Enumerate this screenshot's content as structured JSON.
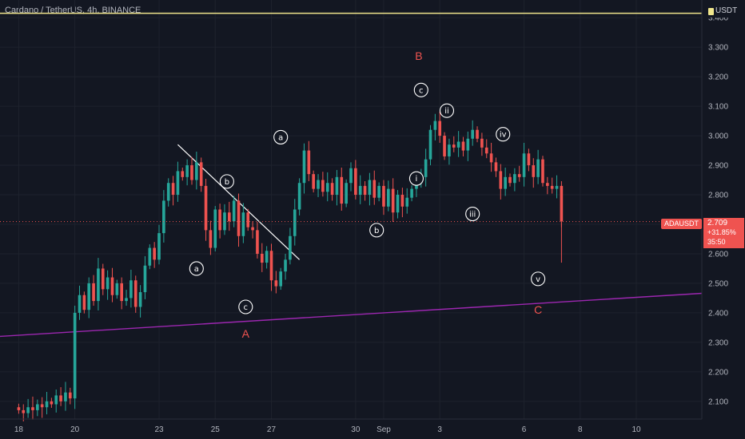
{
  "header": {
    "title": "Cardano / TetherUS, 4h, BINANCE"
  },
  "currency_tag": "USDT",
  "last_price_tag": {
    "symbol": "ADAUSDT",
    "price": "2.709",
    "change": "+31.85%",
    "countdown": "35:50"
  },
  "colors": {
    "up": "#26a69a",
    "down": "#ef5350",
    "background": "#131722",
    "grid": "#1e222d",
    "trendline": "#ffffff",
    "support": "#9c27b0",
    "resistance": "#f0e68c",
    "wave_red": "#ef5350"
  },
  "chart_data": {
    "type": "candlestick",
    "title": "Cardano / TetherUS, 4h, BINANCE",
    "price_axis": {
      "ticks": [
        "3.400",
        "3.300",
        "3.200",
        "3.100",
        "3.000",
        "2.900",
        "2.800",
        "2.700",
        "2.600",
        "2.500",
        "2.400",
        "2.300",
        "2.200",
        "2.100"
      ],
      "range": [
        2.04,
        3.46
      ]
    },
    "time_axis": {
      "ticks": [
        {
          "label": "18",
          "t": 0
        },
        {
          "label": "20",
          "t": 12
        },
        {
          "label": "23",
          "t": 30
        },
        {
          "label": "25",
          "t": 42
        },
        {
          "label": "27",
          "t": 54
        },
        {
          "label": "30",
          "t": 72
        },
        {
          "label": "Sep",
          "t": 78
        },
        {
          "label": "3",
          "t": 90
        },
        {
          "label": "6",
          "t": 108
        },
        {
          "label": "8",
          "t": 120
        },
        {
          "label": "10",
          "t": 132
        }
      ],
      "range": [
        -4,
        146
      ]
    },
    "candles_close": [
      2.07,
      2.06,
      2.08,
      2.07,
      2.09,
      2.08,
      2.1,
      2.09,
      2.12,
      2.1,
      2.13,
      2.11,
      2.4,
      2.46,
      2.41,
      2.5,
      2.44,
      2.55,
      2.48,
      2.52,
      2.46,
      2.5,
      2.44,
      2.45,
      2.51,
      2.42,
      2.47,
      2.56,
      2.62,
      2.58,
      2.67,
      2.78,
      2.84,
      2.8,
      2.88,
      2.86,
      2.9,
      2.85,
      2.91,
      2.83,
      2.68,
      2.62,
      2.75,
      2.68,
      2.74,
      2.71,
      2.78,
      2.66,
      2.74,
      2.69,
      2.68,
      2.6,
      2.57,
      2.61,
      2.51,
      2.49,
      2.54,
      2.58,
      2.66,
      2.75,
      2.84,
      2.95,
      2.87,
      2.82,
      2.85,
      2.81,
      2.84,
      2.8,
      2.86,
      2.77,
      2.84,
      2.89,
      2.8,
      2.83,
      2.8,
      2.85,
      2.79,
      2.83,
      2.76,
      2.82,
      2.74,
      2.8,
      2.76,
      2.79,
      2.82,
      2.84,
      2.86,
      2.92,
      3.02,
      3.05,
      3.0,
      2.93,
      2.97,
      2.96,
      2.98,
      2.95,
      2.99,
      3.02,
      2.99,
      2.96,
      2.94,
      2.91,
      2.88,
      2.82,
      2.86,
      2.84,
      2.87,
      2.86,
      2.94,
      2.9,
      2.86,
      2.92,
      2.84,
      2.83,
      2.82,
      2.83,
      2.71
    ],
    "trendlines": [
      {
        "name": "falling-trendline",
        "from": {
          "t": 34,
          "p": 2.97
        },
        "to": {
          "t": 60,
          "p": 2.58
        }
      },
      {
        "name": "support-line",
        "from": {
          "t": -4,
          "p": 2.32
        },
        "to": {
          "t": 146,
          "p": 2.466
        }
      },
      {
        "name": "resistance-line",
        "from": {
          "t": -4,
          "p": 3.415
        },
        "to": {
          "t": 146,
          "p": 3.415
        }
      }
    ],
    "wave_labels": [
      {
        "text": "a",
        "t": 38,
        "p": 2.55,
        "style": "circle"
      },
      {
        "text": "b",
        "t": 44.5,
        "p": 2.845,
        "style": "circle"
      },
      {
        "text": "c",
        "t": 48.5,
        "p": 2.42,
        "style": "circle"
      },
      {
        "text": "a",
        "t": 56,
        "p": 2.995,
        "style": "circle"
      },
      {
        "text": "b",
        "t": 76.5,
        "p": 2.68,
        "style": "circle"
      },
      {
        "text": "c",
        "t": 86,
        "p": 3.155,
        "style": "circle"
      },
      {
        "text": "i",
        "t": 85,
        "p": 2.855,
        "style": "circle"
      },
      {
        "text": "ii",
        "t": 91.5,
        "p": 3.085,
        "style": "circle"
      },
      {
        "text": "iii",
        "t": 97,
        "p": 2.735,
        "style": "circle"
      },
      {
        "text": "iv",
        "t": 103.5,
        "p": 3.005,
        "style": "circle"
      },
      {
        "text": "v",
        "t": 111,
        "p": 2.515,
        "style": "circle"
      },
      {
        "text": "A",
        "t": 48.5,
        "p": 2.33,
        "style": "red"
      },
      {
        "text": "B",
        "t": 85.5,
        "p": 3.27,
        "style": "red"
      },
      {
        "text": "C",
        "t": 111,
        "p": 2.41,
        "style": "red"
      }
    ],
    "last_price": 2.709
  }
}
